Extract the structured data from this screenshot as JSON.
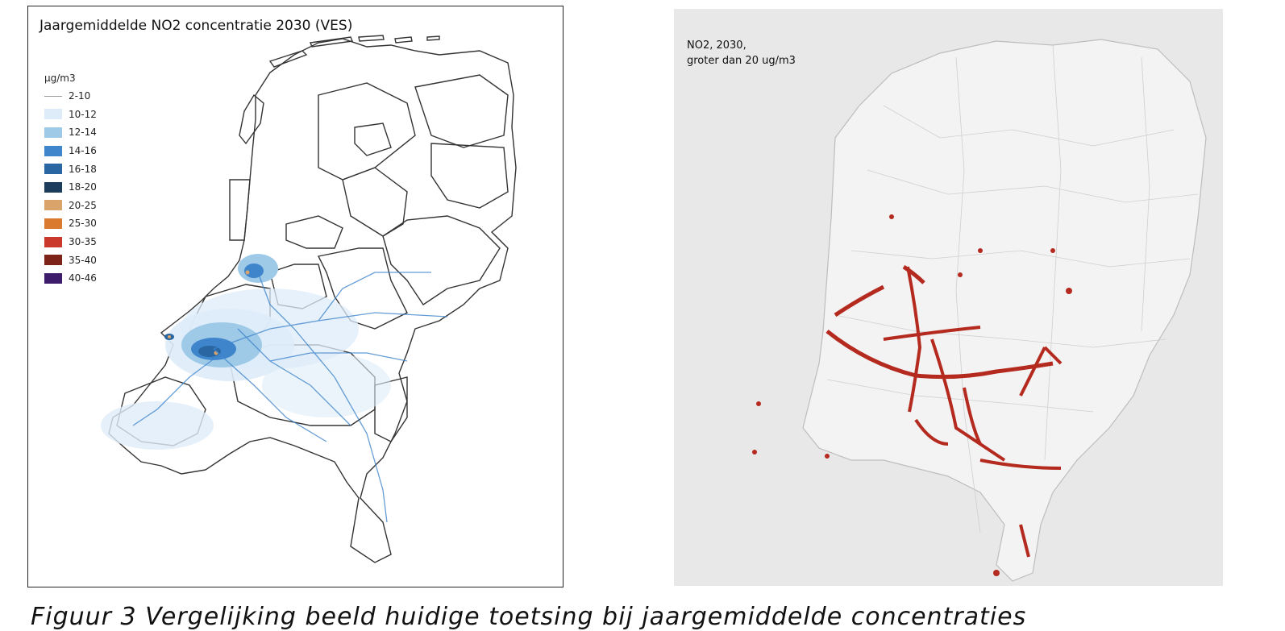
{
  "left_map": {
    "title": "Jaargemiddelde NO2 concentratie 2030 (VES)",
    "legend_unit": "µg/m3",
    "legend": [
      {
        "label": "2-10",
        "color": "#ffffff",
        "type": "line"
      },
      {
        "label": "10-12",
        "color": "#deecf9",
        "type": "fill"
      },
      {
        "label": "12-14",
        "color": "#9ecae8",
        "type": "fill"
      },
      {
        "label": "14-16",
        "color": "#3f85cc",
        "type": "fill"
      },
      {
        "label": "16-18",
        "color": "#2a67a2",
        "type": "fill"
      },
      {
        "label": "18-20",
        "color": "#1c3d5c",
        "type": "fill"
      },
      {
        "label": "20-25",
        "color": "#d9a36a",
        "type": "fill"
      },
      {
        "label": "25-30",
        "color": "#d97a2e",
        "type": "fill"
      },
      {
        "label": "30-35",
        "color": "#c9382b",
        "type": "fill"
      },
      {
        "label": "35-40",
        "color": "#7e2318",
        "type": "fill"
      },
      {
        "label": "40-46",
        "color": "#3d1d6b",
        "type": "fill"
      }
    ]
  },
  "right_map": {
    "title_line1": "NO2, 2030,",
    "title_line2": "groter dan 20 ug/m3",
    "hotspot_color": "#b52a1f",
    "background_color": "#e8e8e8"
  },
  "caption": "Figuur 3 Vergelijking beeld huidige toetsing bij jaargemiddelde concentraties"
}
